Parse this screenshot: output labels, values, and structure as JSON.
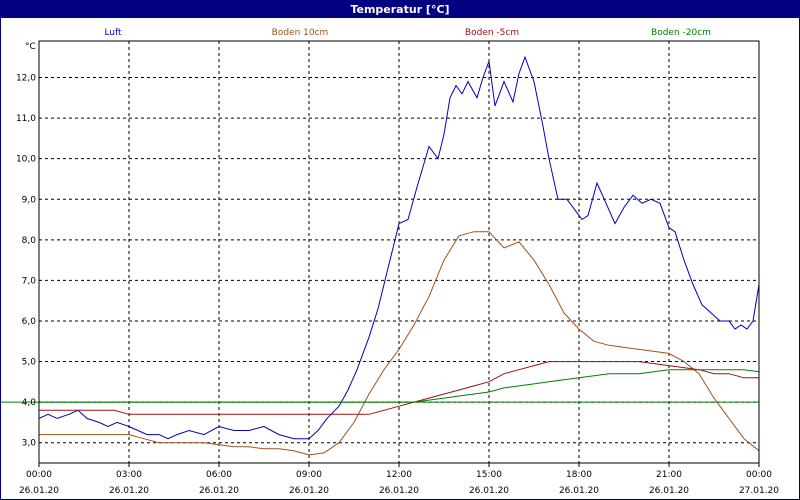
{
  "window": {
    "title": "Temperatur [°C]"
  },
  "chart_data": {
    "type": "line",
    "title": "Temperatur [°C]",
    "ylabel": "°C",
    "xlabel": "",
    "ylim": [
      2.5,
      12.9
    ],
    "xlim": [
      0,
      24
    ],
    "grid": true,
    "legend_placement": "top",
    "y_ticks": [
      "3,0",
      "4,0",
      "5,0",
      "6,0",
      "7,0",
      "8,0",
      "9,0",
      "10,0",
      "11,0",
      "12,0"
    ],
    "y_tick_values": [
      3,
      4,
      5,
      6,
      7,
      8,
      9,
      10,
      11,
      12
    ],
    "x_ticks": [
      {
        "time": "00:00",
        "date": "26.01.20"
      },
      {
        "time": "03:00",
        "date": "26.01.20"
      },
      {
        "time": "06:00",
        "date": "26.01.20"
      },
      {
        "time": "09:00",
        "date": "26.01.20"
      },
      {
        "time": "12:00",
        "date": "26.01.20"
      },
      {
        "time": "15:00",
        "date": "26.01.20"
      },
      {
        "time": "18:00",
        "date": "26.01.20"
      },
      {
        "time": "21:00",
        "date": "26.01.20"
      },
      {
        "time": "00:00",
        "date": "27.01.20"
      }
    ],
    "x_tick_hours": [
      0,
      3,
      6,
      9,
      12,
      15,
      18,
      21,
      24
    ],
    "reference_line": {
      "value": 4.0,
      "color": "#008000"
    },
    "series": [
      {
        "name": "Luft",
        "color": "#0000c0",
        "x": [
          0,
          0.3,
          0.6,
          1,
          1.3,
          1.6,
          2,
          2.3,
          2.6,
          3,
          3.3,
          3.6,
          4,
          4.3,
          4.6,
          5,
          5.5,
          6,
          6.5,
          7,
          7.5,
          8,
          8.5,
          9,
          9.3,
          9.6,
          10,
          10.3,
          10.6,
          11,
          11.3,
          11.6,
          12,
          12.3,
          12.6,
          13,
          13.3,
          13.5,
          13.7,
          13.9,
          14.1,
          14.3,
          14.6,
          14.8,
          15,
          15.2,
          15.5,
          15.8,
          16,
          16.2,
          16.5,
          16.8,
          17,
          17.3,
          17.6,
          17.9,
          18.1,
          18.3,
          18.6,
          18.9,
          19.2,
          19.5,
          19.8,
          20.1,
          20.4,
          20.7,
          21,
          21.2,
          21.5,
          21.8,
          22.1,
          22.4,
          22.7,
          23,
          23.2,
          23.4,
          23.6,
          23.8,
          24
        ],
        "values": [
          3.6,
          3.7,
          3.6,
          3.7,
          3.8,
          3.6,
          3.5,
          3.4,
          3.5,
          3.4,
          3.3,
          3.2,
          3.2,
          3.1,
          3.2,
          3.3,
          3.2,
          3.4,
          3.3,
          3.3,
          3.4,
          3.2,
          3.1,
          3.1,
          3.3,
          3.6,
          3.9,
          4.3,
          4.8,
          5.6,
          6.3,
          7.2,
          8.4,
          8.5,
          9.3,
          10.3,
          10.0,
          10.6,
          11.5,
          11.8,
          11.6,
          11.9,
          11.5,
          12.0,
          12.4,
          11.3,
          11.9,
          11.4,
          12.1,
          12.5,
          11.9,
          10.8,
          10.0,
          9.0,
          9.0,
          8.7,
          8.5,
          8.6,
          9.4,
          8.9,
          8.4,
          8.8,
          9.1,
          8.9,
          9.0,
          8.9,
          8.3,
          8.2,
          7.5,
          6.9,
          6.4,
          6.2,
          6.0,
          6.0,
          5.8,
          5.9,
          5.8,
          6.0,
          6.9
        ]
      },
      {
        "name": "Boden 10cm",
        "color": "#a0521a",
        "x": [
          0,
          1,
          2,
          3,
          3.5,
          4,
          4.5,
          5,
          5.5,
          6,
          6.5,
          7,
          7.5,
          8,
          8.5,
          9,
          9.5,
          10,
          10.5,
          11,
          11.5,
          12,
          12.5,
          13,
          13.5,
          14,
          14.5,
          15,
          15.5,
          16,
          16.5,
          17,
          17.5,
          18,
          18.5,
          19,
          19.5,
          20,
          20.5,
          21,
          21.5,
          22,
          22.5,
          23,
          23.5,
          24
        ],
        "values": [
          3.2,
          3.2,
          3.2,
          3.2,
          3.1,
          3.0,
          3.0,
          3.0,
          3.0,
          2.95,
          2.9,
          2.9,
          2.85,
          2.85,
          2.8,
          2.7,
          2.75,
          3.0,
          3.5,
          4.2,
          4.8,
          5.3,
          5.9,
          6.6,
          7.5,
          8.1,
          8.2,
          8.2,
          7.8,
          7.95,
          7.5,
          6.9,
          6.2,
          5.8,
          5.5,
          5.4,
          5.35,
          5.3,
          5.25,
          5.2,
          5.0,
          4.7,
          4.1,
          3.6,
          3.1,
          2.8
        ]
      },
      {
        "name": "Boden -5cm",
        "color": "#a01010",
        "x": [
          0,
          1,
          2,
          2.5,
          3,
          5,
          7,
          9,
          11,
          11.5,
          12,
          12.5,
          13,
          13.5,
          14,
          14.5,
          15,
          15.5,
          16,
          16.5,
          17,
          17.5,
          18,
          19,
          20,
          21,
          22,
          22.5,
          23,
          23.5,
          24
        ],
        "values": [
          3.8,
          3.8,
          3.8,
          3.8,
          3.7,
          3.7,
          3.7,
          3.7,
          3.7,
          3.8,
          3.9,
          4.0,
          4.1,
          4.2,
          4.3,
          4.4,
          4.5,
          4.7,
          4.8,
          4.9,
          5.0,
          5.0,
          5.0,
          5.0,
          5.0,
          4.9,
          4.8,
          4.7,
          4.7,
          4.6,
          4.6
        ]
      },
      {
        "name": "Boden -20cm",
        "color": "#008000",
        "x": [
          0,
          12,
          12.5,
          13,
          13.5,
          14,
          14.5,
          15,
          15.5,
          16,
          16.5,
          17,
          17.5,
          18,
          18.5,
          19,
          19.5,
          20,
          20.5,
          21,
          22,
          23,
          23.5,
          24
        ],
        "values": [
          4.0,
          4.0,
          4.0,
          4.05,
          4.1,
          4.15,
          4.2,
          4.25,
          4.35,
          4.4,
          4.45,
          4.5,
          4.55,
          4.6,
          4.65,
          4.7,
          4.7,
          4.7,
          4.75,
          4.8,
          4.8,
          4.8,
          4.8,
          4.75
        ]
      }
    ]
  }
}
